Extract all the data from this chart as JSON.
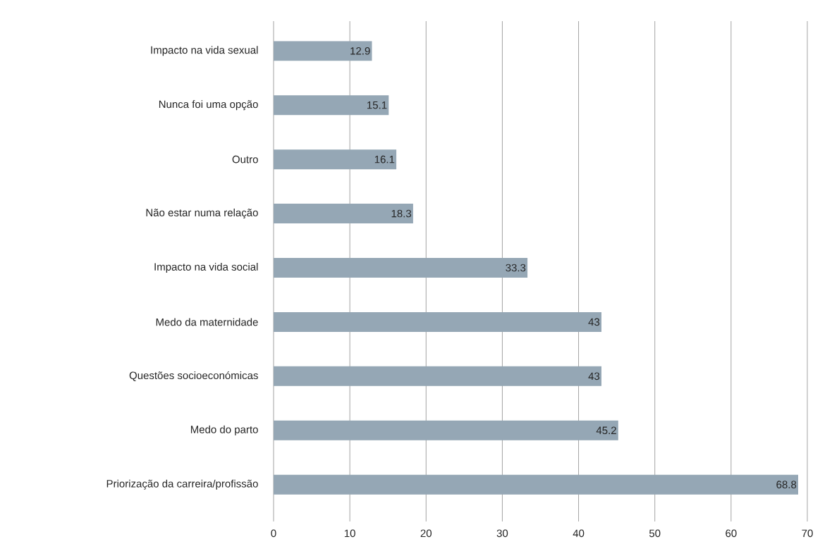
{
  "chart_data": {
    "type": "bar",
    "orientation": "horizontal",
    "categories": [
      "Impacto na vida sexual",
      "Nunca foi uma opção",
      "Outro",
      "Não estar numa relação",
      "Impacto na vida social",
      "Medo da maternidade",
      "Questões socioeconómicas",
      "Medo do parto",
      "Priorização da carreira/profissão"
    ],
    "values": [
      12.9,
      15.1,
      16.1,
      18.3,
      33.3,
      43,
      43,
      45.2,
      68.8
    ],
    "color": "#95a7b5",
    "xlim": [
      0,
      70
    ],
    "xticks": [
      0,
      10,
      20,
      30,
      40,
      50,
      60,
      70
    ],
    "grid": "x",
    "data_labels": true
  }
}
